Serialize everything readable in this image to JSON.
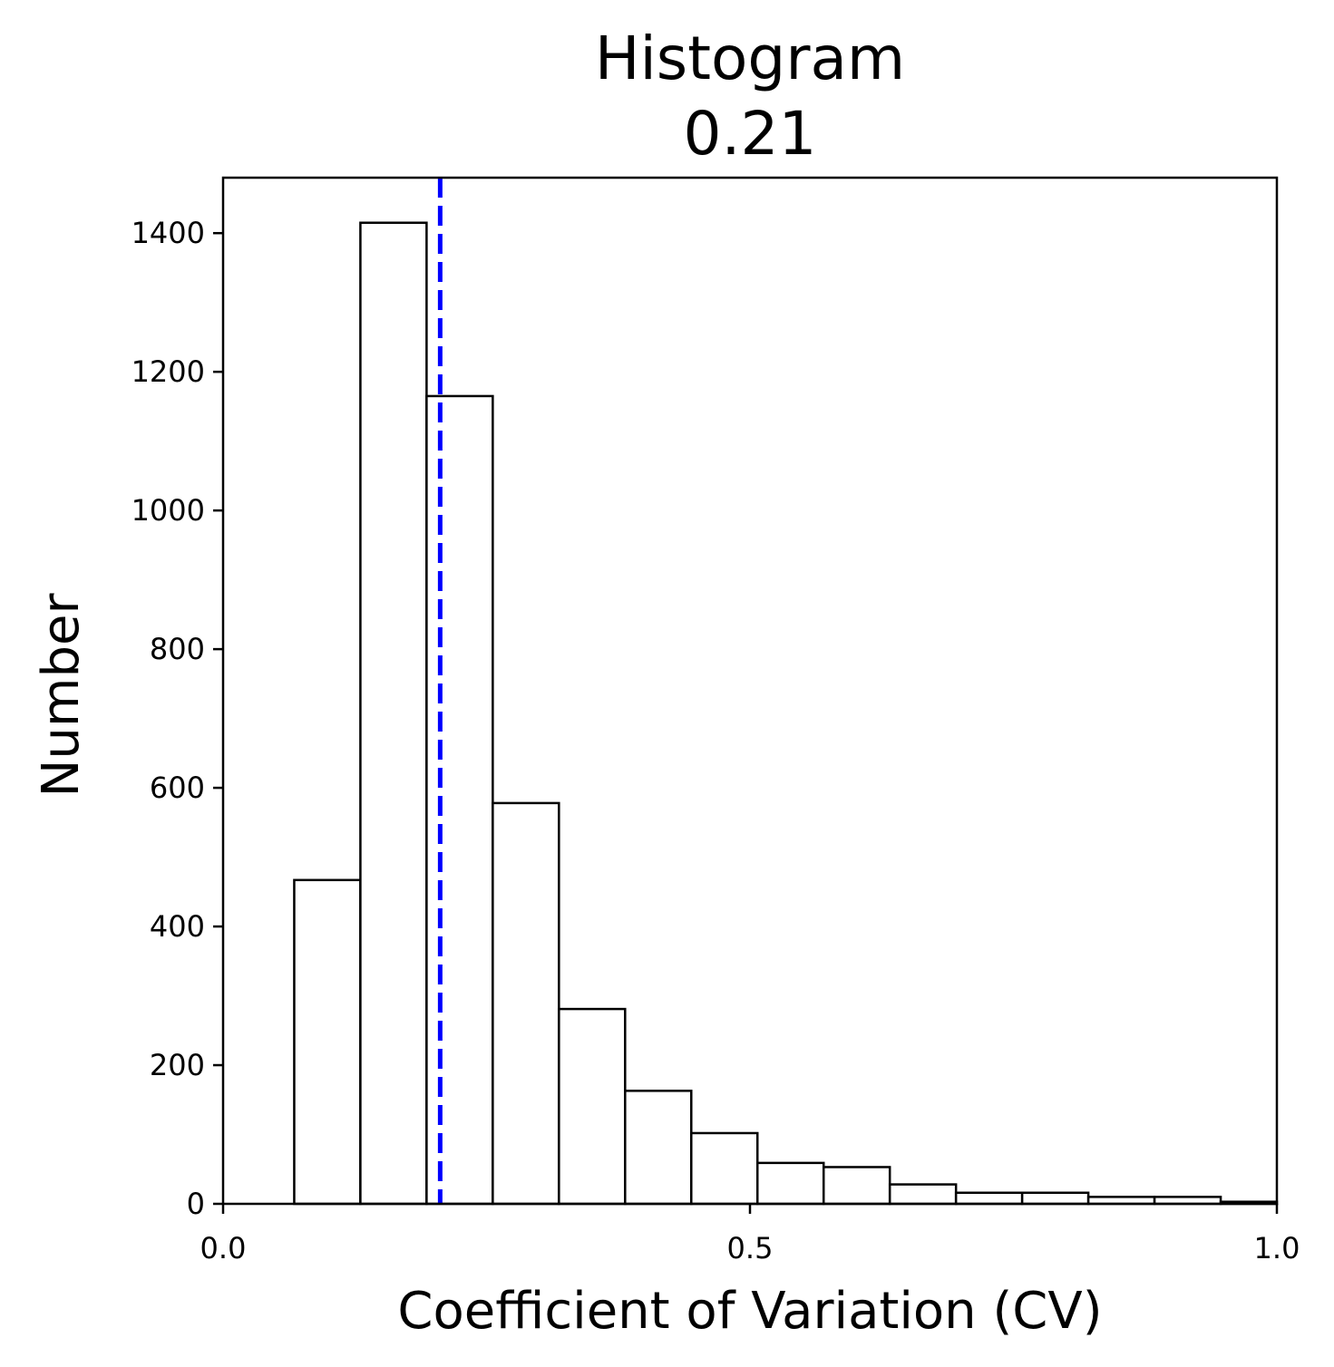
{
  "chart_data": {
    "type": "bar",
    "title_line1": "Histogram",
    "title_line2": "0.21",
    "xlabel": "Coefficient of Variation (CV)",
    "ylabel": "Number",
    "xlim": [
      0.0,
      1.0
    ],
    "ylim": [
      0,
      1480
    ],
    "xticks": [
      {
        "value": 0.0,
        "label": "0.0"
      },
      {
        "value": 0.5,
        "label": "0.5"
      },
      {
        "value": 1.0,
        "label": "1.0"
      }
    ],
    "yticks": [
      {
        "value": 0,
        "label": "0"
      },
      {
        "value": 200,
        "label": "200"
      },
      {
        "value": 400,
        "label": "400"
      },
      {
        "value": 600,
        "label": "600"
      },
      {
        "value": 800,
        "label": "800"
      },
      {
        "value": 1000,
        "label": "1000"
      },
      {
        "value": 1200,
        "label": "1200"
      },
      {
        "value": 1400,
        "label": "1400"
      }
    ],
    "bin_edges": [
      0.0675,
      0.1303,
      0.1931,
      0.2559,
      0.3187,
      0.3815,
      0.4443,
      0.5071,
      0.5699,
      0.6327,
      0.6955,
      0.7583,
      0.8211,
      0.8839,
      0.9467,
      1.0095
    ],
    "values": [
      467,
      1415,
      1165,
      578,
      281,
      163,
      102,
      59,
      53,
      28,
      16,
      16,
      10,
      10,
      3
    ],
    "vline": {
      "x": 0.206,
      "color": "#0000ff",
      "style": "dashed"
    },
    "bar_fill": "#ffffff",
    "bar_edge": "#000000",
    "grid": false
  }
}
